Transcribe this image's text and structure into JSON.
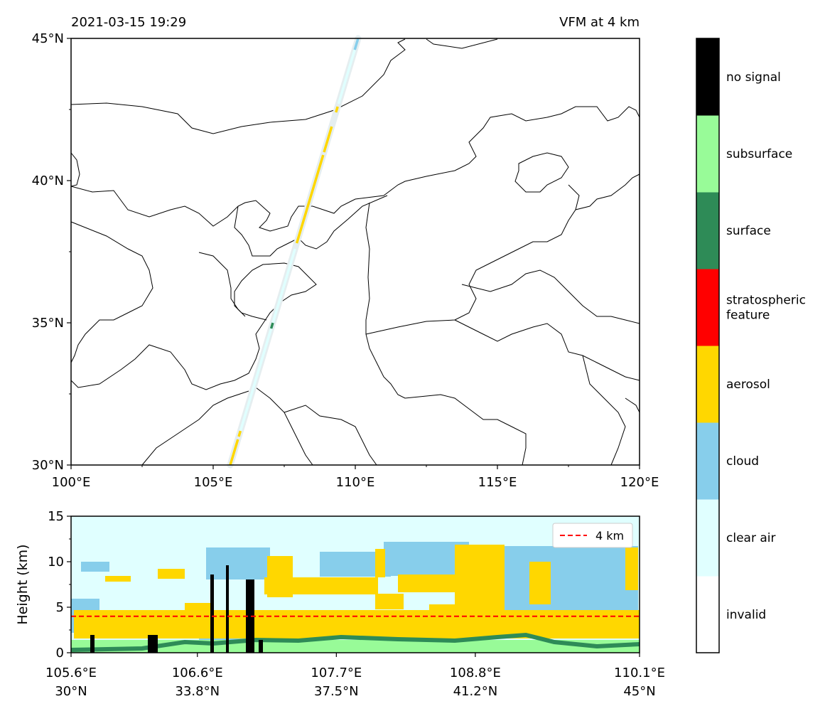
{
  "chart_data": [
    {
      "type": "map",
      "title_left": "2021-03-15 19:29",
      "title_right": "VFM at 4 km",
      "xlim": [
        100,
        120
      ],
      "ylim": [
        30,
        45
      ],
      "x_ticks": [
        100,
        105,
        110,
        115,
        120
      ],
      "x_tick_labels": [
        "100°E",
        "105°E",
        "110°E",
        "115°E",
        "120°E"
      ],
      "y_ticks": [
        30,
        35,
        40,
        45
      ],
      "y_tick_labels": [
        "30°N",
        "35°N",
        "40°N",
        "45°N"
      ],
      "track": {
        "start": [
          105.6,
          30.0
        ],
        "end": [
          110.1,
          45.0
        ],
        "segments": [
          {
            "from": 30.0,
            "to": 30.9,
            "class": "aerosol"
          },
          {
            "from": 31.0,
            "to": 31.2,
            "class": "aerosol"
          },
          {
            "from": 31.2,
            "to": 34.9,
            "class": "clear air"
          },
          {
            "from": 34.8,
            "to": 35.0,
            "class": "surface"
          },
          {
            "from": 35.0,
            "to": 37.6,
            "class": "clear air"
          },
          {
            "from": 37.8,
            "to": 40.9,
            "class": "aerosol"
          },
          {
            "from": 41.0,
            "to": 41.9,
            "class": "aerosol"
          },
          {
            "from": 42.4,
            "to": 42.6,
            "class": "aerosol"
          },
          {
            "from": 42.7,
            "to": 44.6,
            "class": "clear air"
          },
          {
            "from": 44.6,
            "to": 45.0,
            "class": "cloud"
          }
        ]
      }
    },
    {
      "type": "curtain",
      "ylabel": "Height (km)",
      "ylim": [
        0,
        15
      ],
      "y_ticks": [
        0,
        5,
        10,
        15
      ],
      "xlim": [
        105.6,
        110.1
      ],
      "x_ticks": [
        105.6,
        106.6,
        107.7,
        108.8,
        110.1
      ],
      "x_tick_labels": [
        "105.6°E",
        "106.6°E",
        "107.7°E",
        "108.8°E",
        "110.1°E"
      ],
      "x_tick_labels_lat": [
        "30°N",
        "33.8°N",
        "37.5°N",
        "41.2°N",
        "45°N"
      ],
      "legend": "4 km",
      "reference_height_km": 4,
      "background_class": "clear air"
    },
    {
      "type": "colorbar",
      "classes": [
        "invalid",
        "clear air",
        "cloud",
        "aerosol",
        "stratospheric feature",
        "surface",
        "subsurface",
        "no signal"
      ],
      "class_label_lines": [
        [
          "invalid"
        ],
        [
          "clear air"
        ],
        [
          "cloud"
        ],
        [
          "aerosol"
        ],
        [
          "stratospheric",
          "feature"
        ],
        [
          "surface"
        ],
        [
          "subsurface"
        ],
        [
          "no signal"
        ]
      ],
      "colors": [
        "#ffffff",
        "#e0ffff",
        "#87ceeb",
        "#ffd700",
        "#ff0000",
        "#2e8b57",
        "#98fb98",
        "#000000"
      ]
    }
  ]
}
